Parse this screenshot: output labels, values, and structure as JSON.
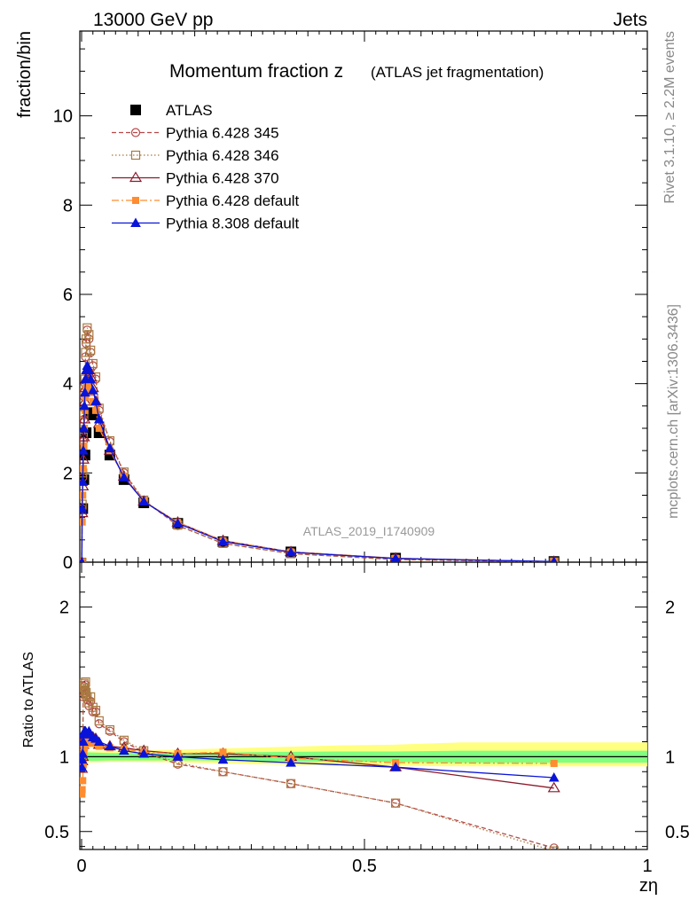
{
  "header": {
    "left": "13000 GeV pp",
    "right": "Jets"
  },
  "side_labels": {
    "rivet": "Rivet 3.1.10, ≥ 2.2M events",
    "mcplots": "mcplots.cern.ch [arXiv:1306.3436]"
  },
  "chart_data": {
    "type": "line",
    "title_main": "Momentum fraction z",
    "title_sub": "(ATLAS jet fragmentation)",
    "watermark": "ATLAS_2019_I1740909",
    "xlabel": "zη",
    "ylabel_top": "fraction/bin",
    "ylabel_bottom": "Ratio to ATLAS",
    "xlim": [
      0,
      1
    ],
    "ylim_top": [
      0,
      11.9
    ],
    "ylim_bottom": [
      0.38,
      2.3
    ],
    "x_ticks": [
      "0",
      "0.5",
      "1"
    ],
    "y_ticks_top": [
      "0",
      "2",
      "4",
      "6",
      "8",
      "10"
    ],
    "y_ticks_bottom": [
      "0.5",
      "1",
      "2"
    ],
    "colors": {
      "ATLAS": "#000000",
      "p345": "#b84848",
      "p346": "#a87a40",
      "p370": "#8b1a2b",
      "p6def": "#ff8c30",
      "p8def": "#0a14d8"
    },
    "series": [
      {
        "name": "ATLAS",
        "x": [
          0.002,
          0.004,
          0.006,
          0.008,
          0.015,
          0.021,
          0.031,
          0.05,
          0.075,
          0.11,
          0.17,
          0.25,
          0.37,
          0.555,
          0.835
        ],
        "y": [
          1.2,
          1.85,
          2.4,
          2.9,
          3.35,
          3.3,
          2.9,
          2.4,
          1.85,
          1.33,
          0.87,
          0.46,
          0.23,
          0.09,
          0.015
        ]
      },
      {
        "name": "Pythia 6.428 345",
        "x": [
          0.0005,
          0.001,
          0.002,
          0.003,
          0.004,
          0.005,
          0.006,
          0.007,
          0.008,
          0.01,
          0.013,
          0.016,
          0.02,
          0.025,
          0.031,
          0.05,
          0.075,
          0.11,
          0.17,
          0.25,
          0.37,
          0.555,
          0.835
        ],
        "y": [
          0.0,
          1.2,
          1.9,
          2.7,
          3.2,
          3.7,
          4.0,
          4.6,
          4.9,
          5.2,
          5.0,
          4.7,
          4.4,
          4.1,
          3.4,
          2.7,
          2.0,
          1.38,
          0.82,
          0.42,
          0.19,
          0.06,
          0.006
        ]
      },
      {
        "name": "Pythia 6.428 346",
        "x": [
          0.0005,
          0.001,
          0.002,
          0.003,
          0.004,
          0.005,
          0.006,
          0.007,
          0.008,
          0.01,
          0.013,
          0.016,
          0.02,
          0.025,
          0.031,
          0.05,
          0.075,
          0.11,
          0.17,
          0.25,
          0.37,
          0.555,
          0.835
        ],
        "y": [
          0.0,
          1.3,
          2.0,
          2.8,
          3.3,
          3.8,
          4.1,
          4.7,
          5.0,
          5.25,
          5.1,
          4.75,
          4.45,
          4.15,
          3.45,
          2.72,
          2.02,
          1.39,
          0.83,
          0.42,
          0.19,
          0.06,
          0.0055
        ]
      },
      {
        "name": "Pythia 6.428 370",
        "x": [
          0.0005,
          0.001,
          0.002,
          0.003,
          0.004,
          0.005,
          0.006,
          0.007,
          0.008,
          0.01,
          0.013,
          0.016,
          0.02,
          0.025,
          0.031,
          0.05,
          0.075,
          0.11,
          0.17,
          0.25,
          0.37,
          0.555,
          0.835
        ],
        "y": [
          0.0,
          1.1,
          1.7,
          2.3,
          2.8,
          3.2,
          3.6,
          3.9,
          4.1,
          4.3,
          4.3,
          4.15,
          3.9,
          3.6,
          3.1,
          2.5,
          1.92,
          1.36,
          0.89,
          0.48,
          0.23,
          0.085,
          0.012
        ]
      },
      {
        "name": "Pythia 6.428 default",
        "x": [
          0.0005,
          0.001,
          0.002,
          0.003,
          0.004,
          0.005,
          0.006,
          0.007,
          0.008,
          0.01,
          0.013,
          0.016,
          0.02,
          0.025,
          0.031,
          0.05,
          0.075,
          0.11,
          0.17,
          0.25,
          0.37,
          0.555,
          0.835
        ],
        "y": [
          0.0,
          0.9,
          1.5,
          2.1,
          2.6,
          3.0,
          3.4,
          3.7,
          3.9,
          4.0,
          3.95,
          3.8,
          3.6,
          3.4,
          3.0,
          2.5,
          1.93,
          1.37,
          0.89,
          0.48,
          0.23,
          0.087,
          0.0145
        ]
      },
      {
        "name": "Pythia 8.308 default",
        "x": [
          0.0005,
          0.001,
          0.002,
          0.003,
          0.004,
          0.005,
          0.006,
          0.007,
          0.008,
          0.01,
          0.013,
          0.016,
          0.02,
          0.025,
          0.031,
          0.05,
          0.075,
          0.11,
          0.17,
          0.25,
          0.37,
          0.555,
          0.835
        ],
        "y": [
          0.0,
          1.2,
          1.8,
          2.5,
          3.0,
          3.5,
          3.8,
          4.1,
          4.3,
          4.4,
          4.3,
          4.1,
          3.85,
          3.6,
          3.2,
          2.55,
          1.9,
          1.36,
          0.87,
          0.46,
          0.22,
          0.084,
          0.013
        ]
      }
    ],
    "ratio_series": [
      {
        "name": "Pythia 6.428 345",
        "x": [
          0.0005,
          0.001,
          0.002,
          0.003,
          0.004,
          0.005,
          0.006,
          0.007,
          0.008,
          0.01,
          0.013,
          0.016,
          0.02,
          0.025,
          0.031,
          0.05,
          0.075,
          0.11,
          0.17,
          0.25,
          0.37,
          0.555,
          0.835
        ],
        "y": [
          0.95,
          1.0,
          1.05,
          1.4,
          1.47,
          1.44,
          1.42,
          1.48,
          1.4,
          1.38,
          1.34,
          1.37,
          1.3,
          1.3,
          1.22,
          1.17,
          1.1,
          1.03,
          0.95,
          0.9,
          0.82,
          0.69,
          0.39
        ]
      },
      {
        "name": "Pythia 6.428 346",
        "x": [
          0.0005,
          0.001,
          0.002,
          0.003,
          0.004,
          0.005,
          0.006,
          0.007,
          0.008,
          0.01,
          0.013,
          0.016,
          0.02,
          0.025,
          0.031,
          0.05,
          0.075,
          0.11,
          0.17,
          0.25,
          0.37,
          0.555,
          0.835
        ],
        "y": [
          0.95,
          1.02,
          1.08,
          1.42,
          1.49,
          1.46,
          1.44,
          1.5,
          1.43,
          1.4,
          1.36,
          1.4,
          1.33,
          1.31,
          1.24,
          1.18,
          1.11,
          1.04,
          0.96,
          0.9,
          0.82,
          0.69,
          0.37
        ]
      },
      {
        "name": "Pythia 6.428 370",
        "x": [
          0.0005,
          0.001,
          0.002,
          0.003,
          0.004,
          0.005,
          0.006,
          0.007,
          0.008,
          0.01,
          0.013,
          0.016,
          0.02,
          0.025,
          0.031,
          0.05,
          0.075,
          0.11,
          0.17,
          0.25,
          0.37,
          0.555,
          0.835
        ],
        "y": [
          0.92,
          0.97,
          1.0,
          1.08,
          1.12,
          1.15,
          1.13,
          1.14,
          1.14,
          1.13,
          1.15,
          1.14,
          1.13,
          1.12,
          1.08,
          1.07,
          1.06,
          1.04,
          1.02,
          1.02,
          1.0,
          0.93,
          0.79
        ]
      },
      {
        "name": "Pythia 6.428 default",
        "x": [
          0.0005,
          0.001,
          0.002,
          0.003,
          0.004,
          0.005,
          0.006,
          0.007,
          0.008,
          0.01,
          0.013,
          0.016,
          0.02,
          0.025,
          0.031,
          0.05,
          0.075,
          0.11,
          0.17,
          0.25,
          0.37,
          0.555,
          0.835
        ],
        "y": [
          0.75,
          0.78,
          0.84,
          0.95,
          1.02,
          1.06,
          1.08,
          1.1,
          1.1,
          1.09,
          1.1,
          1.1,
          1.09,
          1.09,
          1.07,
          1.06,
          1.05,
          1.03,
          1.02,
          1.03,
          0.99,
          0.96,
          0.955
        ]
      },
      {
        "name": "Pythia 8.308 default",
        "x": [
          0.0005,
          0.001,
          0.002,
          0.003,
          0.004,
          0.005,
          0.006,
          0.007,
          0.008,
          0.01,
          0.013,
          0.016,
          0.02,
          0.025,
          0.031,
          0.05,
          0.075,
          0.11,
          0.17,
          0.25,
          0.37,
          0.555,
          0.835
        ],
        "y": [
          0.93,
          0.98,
          1.02,
          1.1,
          1.15,
          1.17,
          1.15,
          1.17,
          1.16,
          1.15,
          1.17,
          1.15,
          1.13,
          1.12,
          1.1,
          1.07,
          1.04,
          1.02,
          1.0,
          0.98,
          0.96,
          0.93,
          0.86
        ]
      }
    ],
    "uncertainty_band": {
      "x": [
        0,
        0.05,
        0.1,
        0.2,
        0.3,
        0.45,
        0.55,
        0.67,
        0.8,
        1.0
      ],
      "inner_lo": [
        0.97,
        0.975,
        0.975,
        0.975,
        0.97,
        0.965,
        0.965,
        0.96,
        0.96,
        0.96
      ],
      "inner_hi": [
        1.03,
        1.025,
        1.025,
        1.025,
        1.03,
        1.035,
        1.035,
        1.04,
        1.04,
        1.04
      ],
      "outer_lo": [
        0.96,
        0.965,
        0.965,
        0.96,
        0.95,
        0.94,
        0.94,
        0.935,
        0.935,
        0.935
      ],
      "outer_hi": [
        1.04,
        1.04,
        1.04,
        1.05,
        1.06,
        1.075,
        1.08,
        1.095,
        1.095,
        1.095
      ]
    }
  }
}
